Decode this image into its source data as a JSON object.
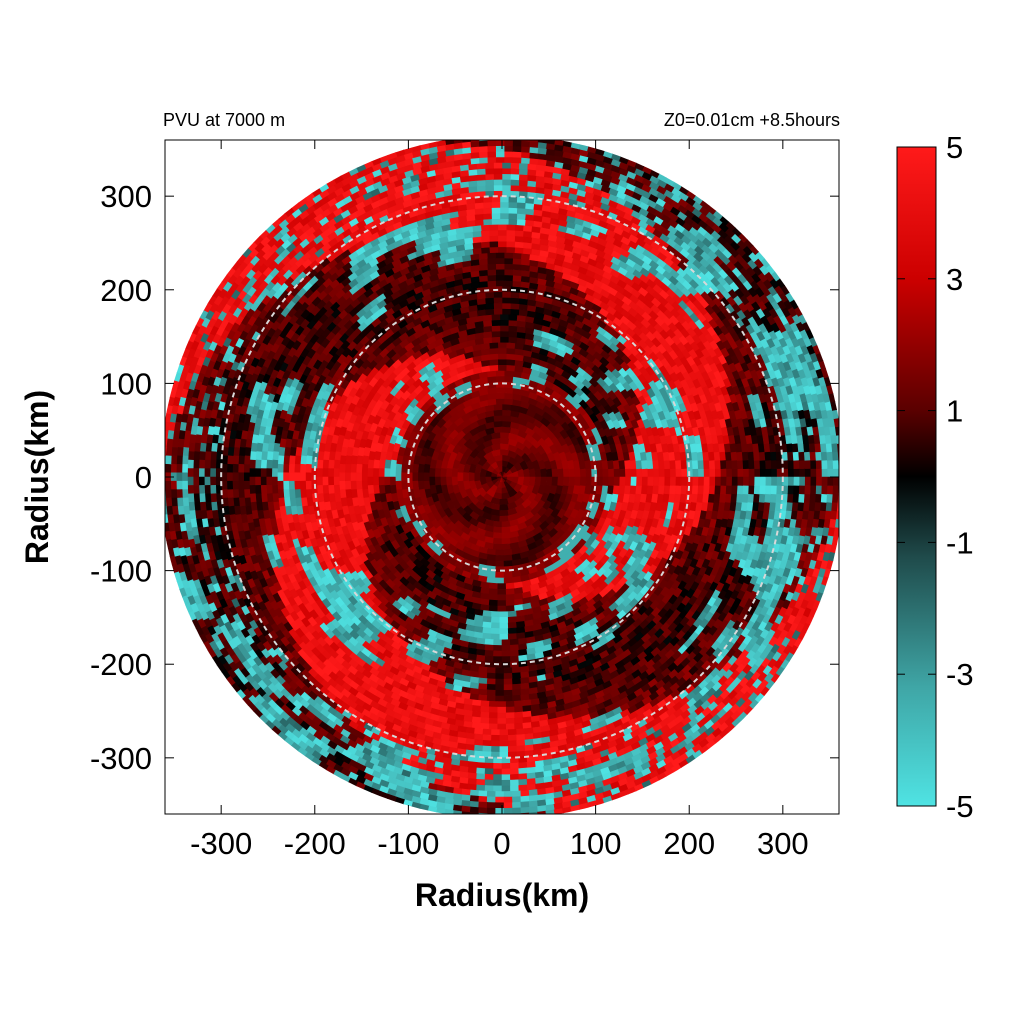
{
  "chart_data": {
    "type": "heatmap",
    "title_left": "PVU at  7000 m",
    "title_right": "Z0=0.01cm  +8.5hours",
    "xlabel": "Radius(km)",
    "ylabel": "Radius(km)",
    "xlim": [
      -360,
      360
    ],
    "ylim": [
      -360,
      360
    ],
    "x_ticks": [
      -300,
      -200,
      -100,
      0,
      100,
      200,
      300
    ],
    "y_ticks": [
      300,
      200,
      100,
      0,
      -100,
      -200,
      -300
    ],
    "data_domain_radius_km": 365,
    "reference_circles_km": [
      100,
      200,
      300
    ],
    "colorbar": {
      "range": [
        -5,
        5
      ],
      "ticks": [
        5,
        3,
        1,
        -1,
        -3,
        -5
      ],
      "colors": {
        "max": "#ff1a1a",
        "high": "#cc0000",
        "mid_high": "#5a0000",
        "zero": "#000000",
        "mid_low": "#1f4a4a",
        "low": "#3fa6a6",
        "min": "#4fe3e3"
      }
    },
    "description_of_field": "Polar pattern of potential vorticity: dark red core inside 100 km, bright red spiral bands between 100-250 km, cyan (negative) patches interspersed in annular bands out to the domain edge."
  }
}
